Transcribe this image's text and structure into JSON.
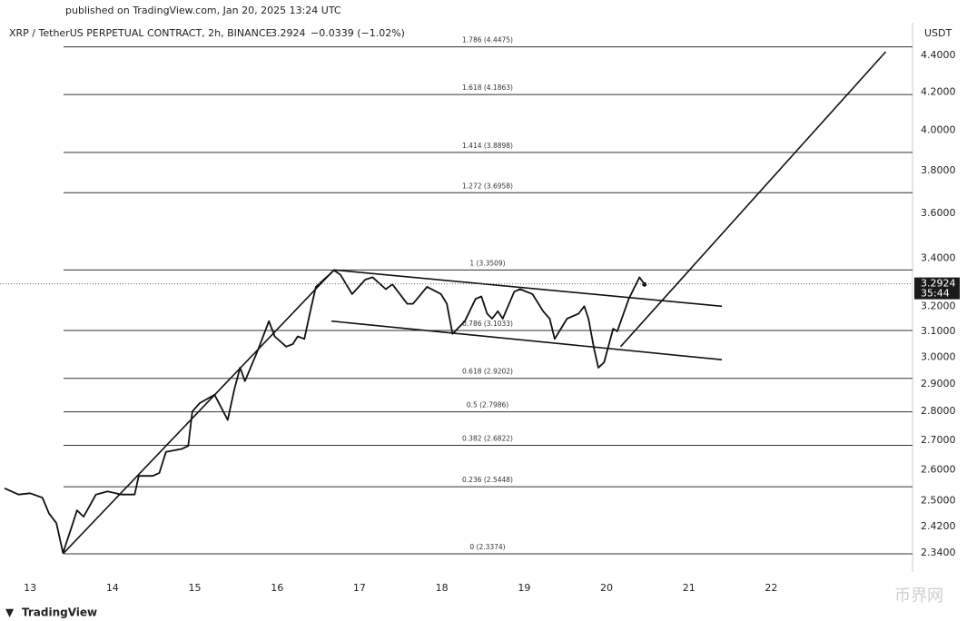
{
  "chart_data": {
    "type": "line",
    "published": "published on TradingView.com, Jan 20, 2025 13:24 UTC",
    "symbol": "XRP / TetherUS PERPETUAL CONTRACT, 2h, BINANCE",
    "last_price": 3.2924,
    "change": "−0.0339 (−1.02%)",
    "countdown": "35:44",
    "currency": "USDT",
    "brand": "TradingView",
    "watermark": "币界网",
    "log_scale": true,
    "color": "#111111",
    "xlim": [
      12.69,
      23.66
    ],
    "ylim": [
      2.284,
      4.466
    ],
    "xticks": [
      13,
      14,
      15,
      16,
      17,
      18,
      19,
      20,
      21,
      22
    ],
    "yticks": [
      {
        "value": 4.4,
        "label": "4.4000"
      },
      {
        "value": 4.2,
        "label": "4.2000"
      },
      {
        "value": 4.0,
        "label": "4.0000"
      },
      {
        "value": 3.8,
        "label": "3.8000"
      },
      {
        "value": 3.6,
        "label": "3.6000"
      },
      {
        "value": 3.4,
        "label": "3.4000"
      },
      {
        "value": 3.2,
        "label": "3.2000"
      },
      {
        "value": 3.1,
        "label": "3.1000"
      },
      {
        "value": 3.0,
        "label": "3.0000"
      },
      {
        "value": 2.9,
        "label": "2.9000"
      },
      {
        "value": 2.8,
        "label": "2.8000"
      },
      {
        "value": 2.7,
        "label": "2.7000"
      },
      {
        "value": 2.6,
        "label": "2.6000"
      },
      {
        "value": 2.5,
        "label": "2.5000"
      },
      {
        "value": 2.42,
        "label": "2.4200"
      },
      {
        "value": 2.34,
        "label": "2.3400"
      }
    ],
    "fib_levels": [
      {
        "value": 4.4475,
        "label": "1.786 (4.4475)"
      },
      {
        "value": 4.1863,
        "label": "1.618 (4.1863)"
      },
      {
        "value": 3.8898,
        "label": "1.414 (3.8898)"
      },
      {
        "value": 3.6958,
        "label": "1.272 (3.6958)"
      },
      {
        "value": 3.3509,
        "label": "1 (3.3509)"
      },
      {
        "value": 3.1033,
        "label": "0.786 (3.1033)"
      },
      {
        "value": 2.9202,
        "label": "0.618 (2.9202)"
      },
      {
        "value": 2.7986,
        "label": "0.5 (2.7986)"
      },
      {
        "value": 2.6822,
        "label": "0.382 (2.6822)"
      },
      {
        "value": 2.5448,
        "label": "0.236 (2.5448)"
      },
      {
        "value": 2.3374,
        "label": "0 (2.3374)"
      }
    ],
    "x": [
      12.69,
      12.86,
      13.0,
      13.15,
      13.23,
      13.32,
      13.4,
      13.52,
      13.57,
      13.65,
      13.8,
      13.94,
      14.11,
      14.27,
      14.32,
      14.49,
      14.57,
      14.65,
      14.84,
      14.92,
      14.97,
      15.06,
      15.24,
      15.4,
      15.48,
      15.55,
      15.61,
      15.77,
      15.9,
      15.97,
      16.11,
      16.19,
      16.25,
      16.33,
      16.41,
      16.47,
      16.63,
      16.69,
      16.77,
      16.91,
      17.07,
      17.16,
      17.32,
      17.4,
      17.58,
      17.65,
      17.82,
      17.99,
      18.06,
      18.13,
      18.28,
      18.41,
      18.48,
      18.55,
      18.61,
      18.68,
      18.74,
      18.88,
      18.95,
      19.1,
      19.23,
      19.31,
      19.37,
      19.52,
      19.66,
      19.73,
      19.78,
      19.85,
      19.9,
      19.97,
      20.08,
      20.13,
      20.27,
      20.4,
      20.46
    ],
    "values": [
      2.54,
      2.52,
      2.524,
      2.51,
      2.46,
      2.43,
      2.34,
      2.43,
      2.47,
      2.45,
      2.52,
      2.53,
      2.52,
      2.52,
      2.58,
      2.58,
      2.59,
      2.66,
      2.67,
      2.68,
      2.8,
      2.83,
      2.86,
      2.77,
      2.88,
      2.96,
      2.91,
      3.03,
      3.14,
      3.08,
      3.04,
      3.05,
      3.08,
      3.07,
      3.19,
      3.28,
      3.33,
      3.35,
      3.33,
      3.25,
      3.31,
      3.32,
      3.27,
      3.29,
      3.21,
      3.21,
      3.28,
      3.25,
      3.21,
      3.09,
      3.14,
      3.23,
      3.24,
      3.17,
      3.15,
      3.18,
      3.15,
      3.26,
      3.27,
      3.25,
      3.18,
      3.15,
      3.07,
      3.15,
      3.17,
      3.2,
      3.15,
      3.03,
      2.96,
      2.98,
      3.11,
      3.1,
      3.23,
      3.32,
      3.29
    ],
    "trendlines": [
      {
        "x": [
          13.4,
          16.69
        ],
        "values": [
          2.3374,
          3.3509
        ]
      },
      {
        "x": [
          16.69,
          21.4
        ],
        "values": [
          3.3509,
          3.2
        ]
      },
      {
        "x": [
          16.66,
          21.4
        ],
        "values": [
          3.14,
          2.99
        ]
      },
      {
        "x": [
          20.17,
          23.39
        ],
        "values": [
          3.04,
          4.42
        ]
      }
    ]
  }
}
